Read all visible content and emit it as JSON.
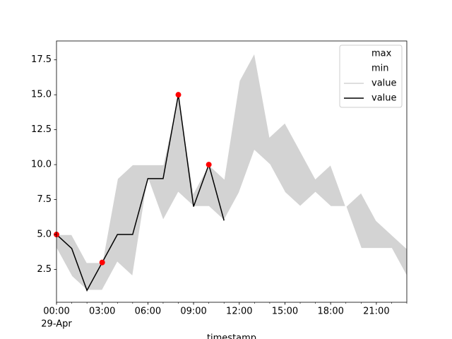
{
  "chart_data": {
    "type": "line",
    "xlabel": "timestamp",
    "x": [
      0,
      1,
      2,
      3,
      4,
      5,
      6,
      7,
      8,
      9,
      10,
      11,
      12,
      13,
      14,
      15,
      16,
      17,
      18,
      19,
      20,
      21,
      22,
      23
    ],
    "series": [
      {
        "name": "max",
        "color": "#ffffff",
        "values": [
          5,
          5,
          3,
          3,
          9,
          10,
          10,
          10,
          15,
          8,
          10,
          9,
          16,
          18,
          12,
          13,
          11,
          9,
          10,
          7,
          8,
          6,
          5,
          4
        ]
      },
      {
        "name": "min",
        "color": "#ffffff",
        "values": [
          4,
          2,
          1,
          1,
          3,
          2,
          9,
          6,
          8,
          7,
          7,
          6,
          8,
          11,
          10,
          8,
          7,
          8,
          7,
          7,
          4,
          4,
          4,
          2
        ]
      },
      {
        "name": "value",
        "color": "#000000",
        "values": [
          5,
          4,
          1,
          3,
          5,
          5,
          9,
          9,
          15,
          7,
          10,
          6,
          null,
          null,
          null,
          null,
          null,
          null,
          null,
          null,
          null,
          null,
          null,
          null
        ]
      }
    ],
    "band": {
      "name": "value",
      "color": "#d3d3d3"
    },
    "anomalies": {
      "color": "#ff0000",
      "x": [
        0,
        3,
        8,
        10
      ],
      "values": [
        5,
        3,
        15,
        10
      ]
    },
    "xlim": [
      0,
      23
    ],
    "xticks": [
      {
        "value": 0,
        "label": "00:00"
      },
      {
        "value": 3,
        "label": "03:00"
      },
      {
        "value": 6,
        "label": "06:00"
      },
      {
        "value": 9,
        "label": "09:00"
      },
      {
        "value": 12,
        "label": "12:00"
      },
      {
        "value": 15,
        "label": "15:00"
      },
      {
        "value": 18,
        "label": "18:00"
      },
      {
        "value": 21,
        "label": "21:00"
      }
    ],
    "date_label": "29-Apr",
    "ylim": [
      0.15,
      18.85
    ],
    "yticks": [
      2.5,
      {
        "value": 5,
        "label": "5.0"
      },
      7.5,
      {
        "value": 10,
        "label": "10.0"
      },
      12.5,
      {
        "value": 15,
        "label": "15.0"
      },
      17.5
    ],
    "legend": "upper right"
  }
}
